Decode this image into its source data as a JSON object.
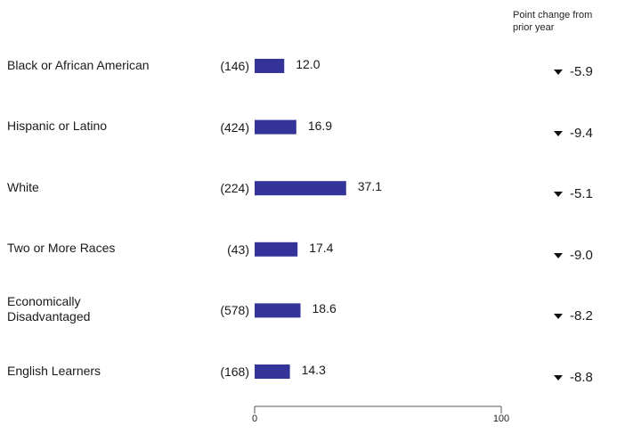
{
  "header": {
    "line1": "Point change from",
    "line2": "prior year"
  },
  "chart_data": {
    "type": "bar",
    "orientation": "horizontal",
    "categories": [
      "Black or African American",
      "Hispanic or Latino",
      "White",
      "Two or More Races",
      "Economically Disadvantaged",
      "English Learners"
    ],
    "category_lines": [
      [
        "Black or African American"
      ],
      [
        "Hispanic or Latino"
      ],
      [
        "White"
      ],
      [
        "Two or More Races"
      ],
      [
        "Economically",
        "Disadvantaged"
      ],
      [
        "English Learners"
      ]
    ],
    "counts": [
      "(146)",
      "(424)",
      "(224)",
      "(43)",
      "(578)",
      "(168)"
    ],
    "values": [
      12.0,
      16.9,
      37.1,
      17.4,
      18.6,
      14.3
    ],
    "value_labels": [
      "12.0",
      "16.9",
      "37.1",
      "17.4",
      "18.6",
      "14.3"
    ],
    "changes": [
      "-5.9",
      "-9.4",
      "-5.1",
      "-9.0",
      "-8.2",
      "-8.8"
    ],
    "xlim": [
      0,
      100
    ],
    "x_ticks": [
      "0",
      "100"
    ],
    "bar_color": "#33339a",
    "grid": false
  }
}
